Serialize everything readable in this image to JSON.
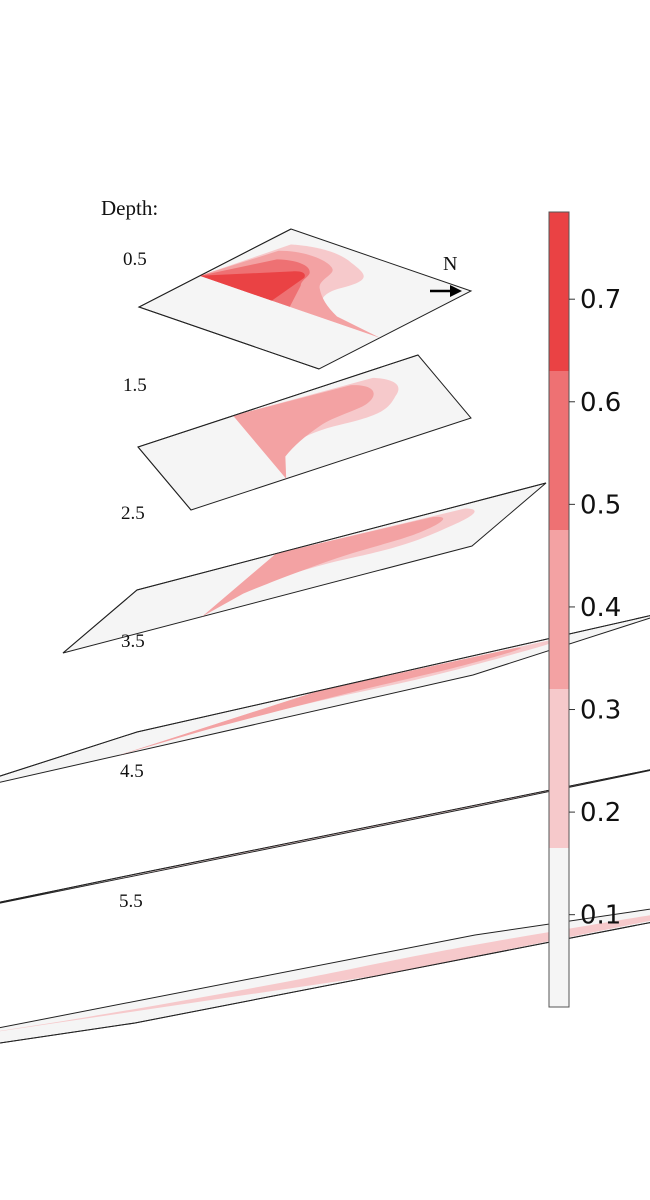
{
  "chart_data": {
    "type": "heatmap",
    "title": "",
    "depth_label": "Depth:",
    "north_label": "N",
    "layers": [
      {
        "depth_label": "0.5",
        "max_value": 0.75
      },
      {
        "depth_label": "1.5",
        "max_value": 0.45
      },
      {
        "depth_label": "2.5",
        "max_value": 0.42
      },
      {
        "depth_label": "3.5",
        "max_value": 0.35
      },
      {
        "depth_label": "4.5",
        "max_value": 0.25
      },
      {
        "depth_label": "5.5",
        "max_value": 0.2
      }
    ],
    "colorbar": {
      "min": 0.01,
      "max": 0.785,
      "ticks": [
        0.1,
        0.2,
        0.3,
        0.4,
        0.5,
        0.6,
        0.7
      ],
      "tick_labels": [
        "0.1",
        "0.2",
        "0.3",
        "0.4",
        "0.5",
        "0.6",
        "0.7"
      ],
      "levels": [
        0.01,
        0.165,
        0.32,
        0.475,
        0.63,
        0.785
      ],
      "colors": [
        "#f5f5f5",
        "#f6c9cb",
        "#f3a2a3",
        "#ee7173",
        "#ea4244"
      ]
    }
  }
}
